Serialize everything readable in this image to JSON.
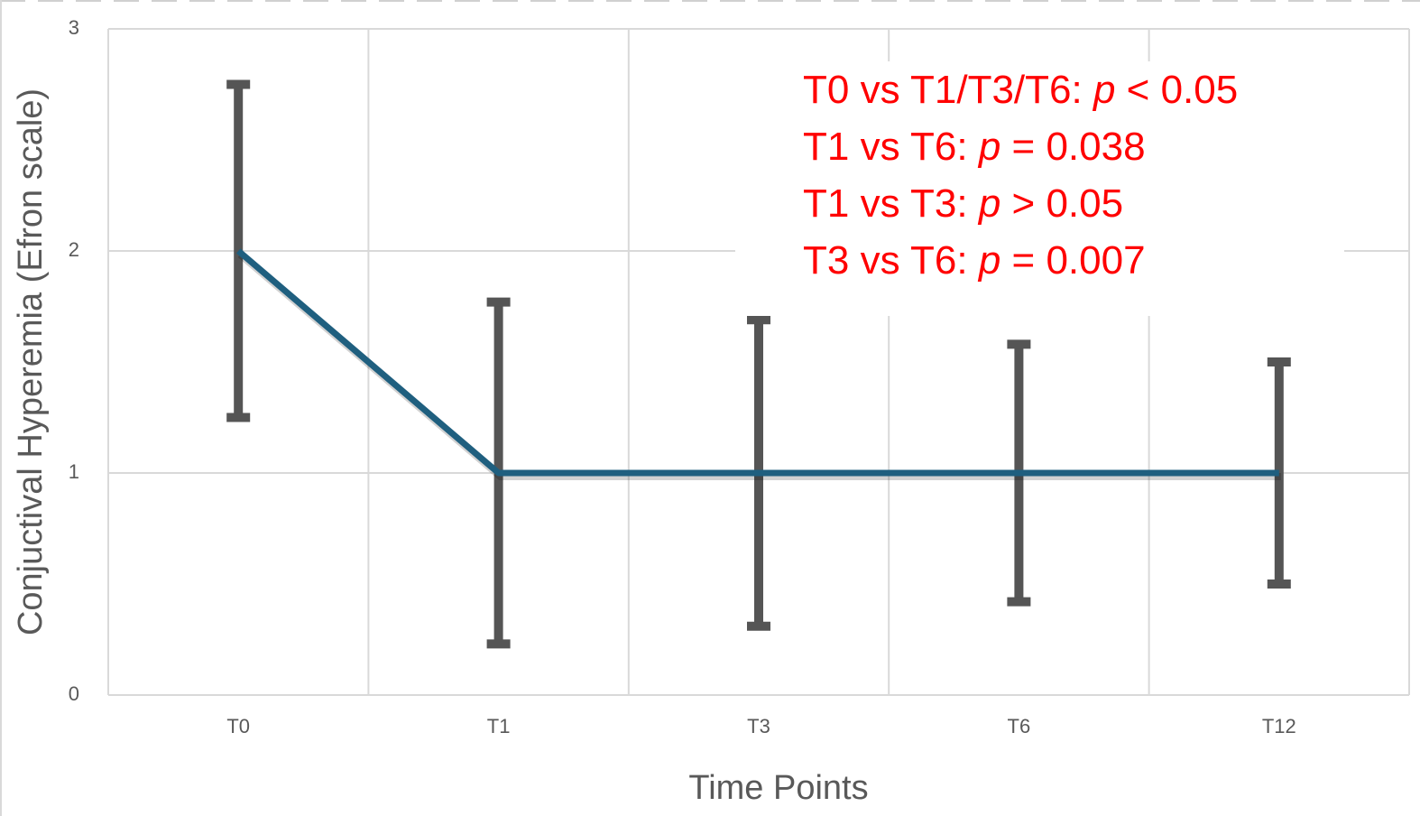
{
  "chart_data": {
    "type": "line",
    "x_label": "Time Points",
    "y_label": "Conjuctival Hyperemia (Efron scale)",
    "categories": [
      "T0",
      "T1",
      "T3",
      "T6",
      "T12"
    ],
    "series": [
      {
        "name": "Conjuctival Hyperemia",
        "color": "#1f5f7f",
        "values": [
          2,
          1,
          1,
          1,
          1
        ],
        "error": [
          0.75,
          0.77,
          0.69,
          0.58,
          0.5
        ],
        "error_color": "#555555"
      }
    ],
    "ylim": [
      0,
      3
    ],
    "yticks": [
      0,
      1,
      2,
      3
    ],
    "grid": true,
    "annotations": [
      [
        "T0 vs T1/T3/T6: ",
        "p",
        " < 0.05"
      ],
      [
        "T1 vs T6: ",
        "p",
        " = 0.038"
      ],
      [
        "T1 vs T3: ",
        "p",
        " > 0.05"
      ],
      [
        "T3 vs T6: ",
        "p",
        " = 0.007"
      ]
    ],
    "annotation_color": "#ff0000"
  }
}
